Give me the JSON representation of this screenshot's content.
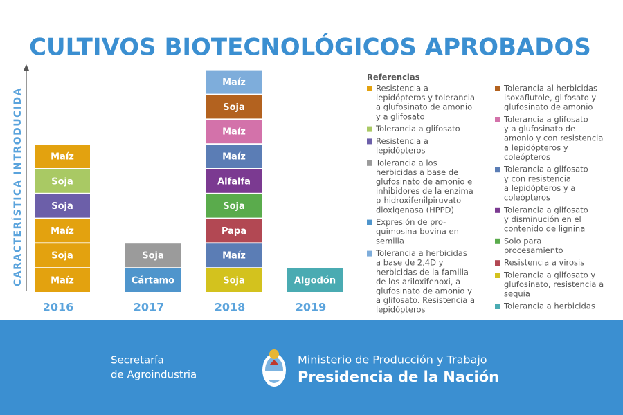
{
  "title": "CULTIVOS BIOTECNOLÓGICOS APROBADOS",
  "axis_label": "CARACTERÍSTICA INTRODUCIDA",
  "columns": [
    {
      "year": "2016",
      "blocks": [
        {
          "label": "Maíz",
          "color": "#e3a20f"
        },
        {
          "label": "Soja",
          "color": "#e3a20f"
        },
        {
          "label": "Maíz",
          "color": "#e3a20f"
        },
        {
          "label": "Soja",
          "color": "#6c5fa9"
        },
        {
          "label": "Soja",
          "color": "#a9c964"
        },
        {
          "label": "Maíz",
          "color": "#e3a20f"
        }
      ]
    },
    {
      "year": "2017",
      "blocks": [
        {
          "label": "Cártamo",
          "color": "#4f95cc"
        },
        {
          "label": "Soja",
          "color": "#9b9b9b"
        }
      ]
    },
    {
      "year": "2018",
      "blocks": [
        {
          "label": "Soja",
          "color": "#d3c21e"
        },
        {
          "label": "Maíz",
          "color": "#5b7db5"
        },
        {
          "label": "Papa",
          "color": "#b24853"
        },
        {
          "label": "Soja",
          "color": "#5aab4c"
        },
        {
          "label": "Alfalfa",
          "color": "#7b3a91"
        },
        {
          "label": "Maíz",
          "color": "#5b7db5"
        },
        {
          "label": "Maíz",
          "color": "#d372aa"
        },
        {
          "label": "Soja",
          "color": "#b3621f"
        },
        {
          "label": "Maíz",
          "color": "#7eaddb"
        }
      ]
    },
    {
      "year": "2019",
      "blocks": [
        {
          "label": "Algodón",
          "color": "#4aabb2"
        }
      ]
    }
  ],
  "legend": {
    "heading": "Referencias",
    "columns": [
      [
        {
          "color": "#e3a20f",
          "lines": [
            "Resistencia a",
            "lepidópteros y tolerancia",
            "a glufosinato de amonio",
            "y a glifosato"
          ]
        },
        {
          "color": "#a9c964",
          "lines": [
            "Tolerancia a glifosato"
          ]
        },
        {
          "color": "#6c5fa9",
          "lines": [
            "Resistencia a",
            "lepidópteros"
          ]
        },
        {
          "color": "#9b9b9b",
          "lines": [
            "Tolerancia a los",
            "herbicidas a base de",
            "glufosinato de amonio e",
            "inhibidores de la enzima",
            "p-hidroxifenilpiruvato",
            "dioxigenasa (HPPD)"
          ]
        },
        {
          "color": "#4f95cc",
          "lines": [
            "Expresión de pro-",
            "quimosina bovina en",
            "semilla"
          ]
        },
        {
          "color": "#7eaddb",
          "lines": [
            "Tolerancia a herbicidas",
            "a base de 2,4D y",
            "herbicidas de la familia",
            "de los ariloxifenoxi, a",
            "glufosinato de amonio y",
            "a glifosato. Resistencia a",
            "lepidópteros"
          ]
        }
      ],
      [
        {
          "color": "#b3621f",
          "lines": [
            "Tolerancia al herbicidas",
            "isoxaflutole, glifosato y",
            "glufosinato de amonio"
          ]
        },
        {
          "color": "#d372aa",
          "lines": [
            "Tolerancia a glifosato",
            "y a glufosinato de",
            "amonio y con resistencia",
            "a lepidópteros y",
            "coleópteros"
          ]
        },
        {
          "color": "#5b7db5",
          "lines": [
            "Tolerancia a glifosato",
            "y con resistencia",
            "a lepidópteros y a",
            "coleópteros"
          ]
        },
        {
          "color": "#7b3a91",
          "lines": [
            "Tolerancia a glifosato",
            "y disminución en el",
            "contenido de lignina"
          ]
        },
        {
          "color": "#5aab4c",
          "lines": [
            "Solo para",
            "procesamiento"
          ]
        },
        {
          "color": "#b24853",
          "lines": [
            "Resistencia a virosis"
          ]
        },
        {
          "color": "#d3c21e",
          "lines": [
            "Tolerancia a glifosato y",
            "glufosinato, resistencia a",
            "sequía"
          ]
        },
        {
          "color": "#4aabb2",
          "lines": [
            "Tolerancia a herbicidas"
          ]
        }
      ]
    ]
  },
  "footer": {
    "secretaria": [
      "Secretaría",
      "de Agroindustria"
    ],
    "ministerio": "Ministerio de Producción y Trabajo",
    "presidencia": "Presidencia de la Nación"
  }
}
